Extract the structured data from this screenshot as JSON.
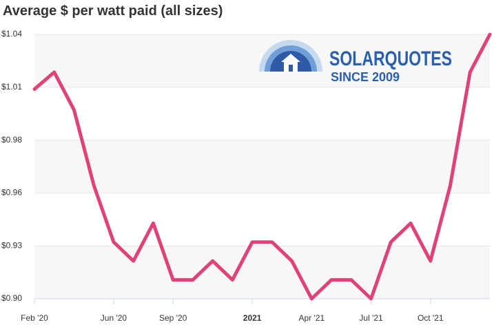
{
  "chart_data": {
    "type": "line",
    "title": "Average $ per watt paid (all sizes)",
    "categories": [
      "Feb '20",
      null,
      null,
      null,
      "Jun '20",
      null,
      null,
      "Sep '20",
      null,
      null,
      null,
      "2021",
      null,
      null,
      "Apr '21",
      null,
      null,
      "Jul '21",
      null,
      null,
      "Oct '21",
      null,
      null,
      null
    ],
    "values": [
      1.011,
      1.02,
      1.0,
      0.96,
      0.93,
      0.92,
      0.94,
      0.91,
      0.91,
      0.92,
      0.91,
      0.93,
      0.93,
      0.92,
      0.9,
      0.91,
      0.91,
      0.9,
      0.93,
      0.94,
      0.92,
      0.96,
      1.02,
      1.04
    ],
    "color": "#de4279",
    "ylim": [
      0.9,
      1.04
    ],
    "yticks": [
      {
        "value": 0.9,
        "label": "$0.90"
      },
      {
        "value": 0.928,
        "label": "$0.93"
      },
      {
        "value": 0.956,
        "label": "$0.96"
      },
      {
        "value": 0.984,
        "label": "$0.98"
      },
      {
        "value": 1.012,
        "label": "$1.01"
      },
      {
        "value": 1.04,
        "label": "$1.04"
      }
    ],
    "grid": true,
    "band_color": "#f7f7f7",
    "logo": {
      "name": "SOLARQUOTES",
      "tagline": "SINCE 2009"
    }
  }
}
